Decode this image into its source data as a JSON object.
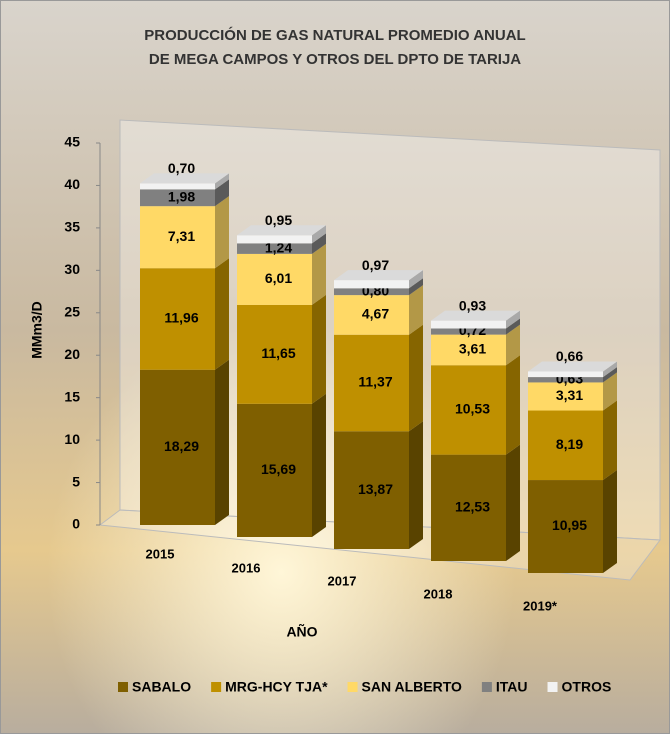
{
  "chart_data": {
    "type": "bar",
    "stacked": true,
    "title": [
      "PRODUCCIÓN DE GAS NATURAL PROMEDIO ANUAL",
      "DE MEGA CAMPOS Y OTROS DEL DPTO DE TARIJA"
    ],
    "xlabel": "AÑO",
    "ylabel": "MMm3/D",
    "categories": [
      "2015",
      "2016",
      "2017",
      "2018",
      "2019*"
    ],
    "series": [
      {
        "name": "SABALO",
        "color": "#7f5f00",
        "values": [
          18.29,
          15.69,
          13.87,
          12.53,
          10.95
        ],
        "value_labels": [
          "18,29",
          "15,69",
          "13,87",
          "12,53",
          "10,95"
        ]
      },
      {
        "name": "MRG-HCY TJA*",
        "color": "#bf9000",
        "values": [
          11.96,
          11.65,
          11.37,
          10.53,
          8.19
        ],
        "value_labels": [
          "11,96",
          "11,65",
          "11,37",
          "10,53",
          "8,19"
        ]
      },
      {
        "name": "SAN ALBERTO",
        "color": "#ffd966",
        "values": [
          7.31,
          6.01,
          4.67,
          3.61,
          3.31
        ],
        "value_labels": [
          "7,31",
          "6,01",
          "4,67",
          "3,61",
          "3,31"
        ]
      },
      {
        "name": "ITAU",
        "color": "#808080",
        "values": [
          1.98,
          1.24,
          0.8,
          0.72,
          0.63
        ],
        "value_labels": [
          "1,98",
          "1,24",
          "0,80",
          "0,72",
          "0,63"
        ]
      },
      {
        "name": "OTROS",
        "color": "#f2f2f2",
        "values": [
          0.7,
          0.95,
          0.97,
          0.93,
          0.66
        ],
        "value_labels": [
          "0,70",
          "0,95",
          "0,97",
          "0,93",
          "0,66"
        ]
      }
    ],
    "ylim": [
      0,
      45
    ],
    "yticks": [
      0,
      5,
      10,
      15,
      20,
      25,
      30,
      35,
      40,
      45
    ],
    "legend": "bottom"
  }
}
